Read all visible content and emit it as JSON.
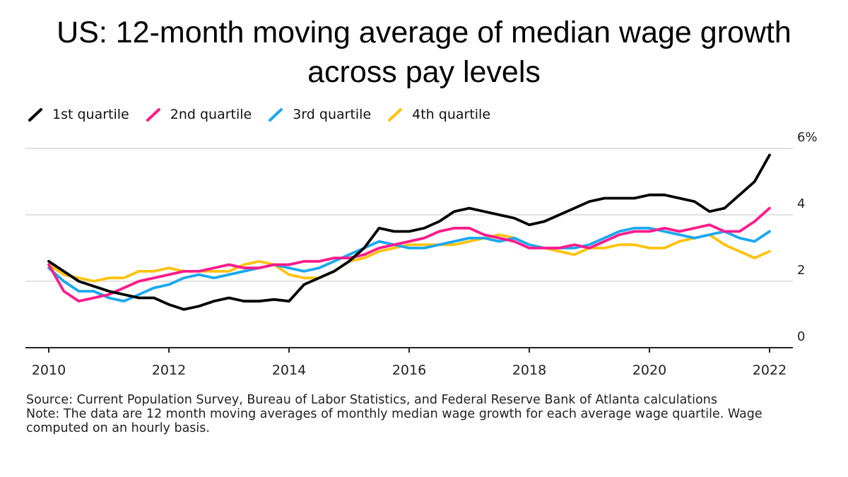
{
  "title_line1": "US: 12-month moving average of median wage growth",
  "title_line2": "across pay levels",
  "source_note": "Source: Current Population Survey, Bureau of Labor Statistics, and Federal Reserve Bank of Atlanta calculations",
  "data_note": "Note: The data are 12 month moving averages of monthly median wage growth for each average wage quartile. Wage computed on an hourly basis.",
  "chart_data": {
    "type": "line",
    "title": "US: 12-month moving average of median wage growth across pay levels",
    "xlabel": "",
    "ylabel": "",
    "xlim": [
      2010,
      2022
    ],
    "ylim": [
      0,
      6
    ],
    "x_ticks": [
      "2010",
      "2012",
      "2014",
      "2016",
      "2018",
      "2020",
      "2022"
    ],
    "y_ticks": [
      {
        "value": 0,
        "label": "0"
      },
      {
        "value": 2,
        "label": "2"
      },
      {
        "value": 4,
        "label": "4"
      },
      {
        "value": 6,
        "label": "6%"
      }
    ],
    "grid": true,
    "legend_position": "top-left",
    "series": [
      {
        "name": "1st quartile",
        "color": "#000000",
        "x": [
          2010.0,
          2010.5,
          2011.0,
          2011.25,
          2011.5,
          2011.75,
          2012.0,
          2012.25,
          2012.5,
          2012.75,
          2013.0,
          2013.25,
          2013.5,
          2013.75,
          2014.0,
          2014.25,
          2014.5,
          2014.75,
          2015.0,
          2015.25,
          2015.5,
          2015.75,
          2016.0,
          2016.25,
          2016.5,
          2016.75,
          2017.0,
          2017.25,
          2017.5,
          2017.75,
          2018.0,
          2018.25,
          2018.5,
          2018.75,
          2019.0,
          2019.25,
          2019.5,
          2019.75,
          2020.0,
          2020.25,
          2020.5,
          2020.75,
          2021.0,
          2021.25,
          2021.5,
          2021.75,
          2022.0
        ],
        "values": [
          2.6,
          2.0,
          1.7,
          1.6,
          1.5,
          1.5,
          1.3,
          1.15,
          1.25,
          1.4,
          1.5,
          1.4,
          1.4,
          1.45,
          1.4,
          1.9,
          2.1,
          2.3,
          2.6,
          3.0,
          3.6,
          3.5,
          3.5,
          3.6,
          3.8,
          4.1,
          4.2,
          4.1,
          4.0,
          3.9,
          3.7,
          3.8,
          4.0,
          4.2,
          4.4,
          4.5,
          4.5,
          4.5,
          4.6,
          4.6,
          4.5,
          4.4,
          4.1,
          4.2,
          4.6,
          5.0,
          5.8
        ]
      },
      {
        "name": "2nd quartile",
        "color": "#ff1a8c",
        "x": [
          2010.0,
          2010.25,
          2010.5,
          2010.75,
          2011.0,
          2011.25,
          2011.5,
          2011.75,
          2012.0,
          2012.25,
          2012.5,
          2012.75,
          2013.0,
          2013.25,
          2013.5,
          2013.75,
          2014.0,
          2014.25,
          2014.5,
          2014.75,
          2015.0,
          2015.25,
          2015.5,
          2015.75,
          2016.0,
          2016.25,
          2016.5,
          2016.75,
          2017.0,
          2017.25,
          2017.5,
          2017.75,
          2018.0,
          2018.25,
          2018.5,
          2018.75,
          2019.0,
          2019.25,
          2019.5,
          2019.75,
          2020.0,
          2020.25,
          2020.5,
          2020.75,
          2021.0,
          2021.25,
          2021.5,
          2021.75,
          2022.0
        ],
        "values": [
          2.5,
          1.7,
          1.4,
          1.5,
          1.6,
          1.8,
          2.0,
          2.1,
          2.2,
          2.3,
          2.3,
          2.4,
          2.5,
          2.4,
          2.4,
          2.5,
          2.5,
          2.6,
          2.6,
          2.7,
          2.7,
          2.8,
          3.0,
          3.1,
          3.2,
          3.3,
          3.5,
          3.6,
          3.6,
          3.4,
          3.3,
          3.2,
          3.0,
          3.0,
          3.0,
          3.1,
          3.0,
          3.2,
          3.4,
          3.5,
          3.5,
          3.6,
          3.5,
          3.6,
          3.7,
          3.5,
          3.5,
          3.8,
          4.2
        ]
      },
      {
        "name": "3rd quartile",
        "color": "#1aa8f0",
        "x": [
          2010.0,
          2010.25,
          2010.5,
          2010.75,
          2011.0,
          2011.25,
          2011.5,
          2011.75,
          2012.0,
          2012.25,
          2012.5,
          2012.75,
          2013.0,
          2013.25,
          2013.5,
          2013.75,
          2014.0,
          2014.25,
          2014.5,
          2014.75,
          2015.0,
          2015.25,
          2015.5,
          2015.75,
          2016.0,
          2016.25,
          2016.5,
          2016.75,
          2017.0,
          2017.25,
          2017.5,
          2017.75,
          2018.0,
          2018.25,
          2018.5,
          2018.75,
          2019.0,
          2019.25,
          2019.5,
          2019.75,
          2020.0,
          2020.25,
          2020.5,
          2020.75,
          2021.0,
          2021.25,
          2021.5,
          2021.75,
          2022.0
        ],
        "values": [
          2.4,
          2.0,
          1.7,
          1.7,
          1.5,
          1.4,
          1.6,
          1.8,
          1.9,
          2.1,
          2.2,
          2.1,
          2.2,
          2.3,
          2.4,
          2.5,
          2.4,
          2.3,
          2.4,
          2.6,
          2.8,
          3.0,
          3.2,
          3.1,
          3.0,
          3.0,
          3.1,
          3.2,
          3.3,
          3.3,
          3.2,
          3.3,
          3.1,
          3.0,
          3.0,
          3.0,
          3.1,
          3.3,
          3.5,
          3.6,
          3.6,
          3.5,
          3.4,
          3.3,
          3.4,
          3.5,
          3.3,
          3.2,
          3.5
        ]
      },
      {
        "name": "4th quartile",
        "color": "#ffc20e",
        "x": [
          2010.0,
          2010.25,
          2010.5,
          2010.75,
          2011.0,
          2011.25,
          2011.5,
          2011.75,
          2012.0,
          2012.25,
          2012.5,
          2012.75,
          2013.0,
          2013.25,
          2013.5,
          2013.75,
          2014.0,
          2014.25,
          2014.5,
          2014.75,
          2015.0,
          2015.25,
          2015.5,
          2015.75,
          2016.0,
          2016.25,
          2016.5,
          2016.75,
          2017.0,
          2017.25,
          2017.5,
          2017.75,
          2018.0,
          2018.25,
          2018.5,
          2018.75,
          2019.0,
          2019.25,
          2019.5,
          2019.75,
          2020.0,
          2020.25,
          2020.5,
          2020.75,
          2021.0,
          2021.25,
          2021.5,
          2021.75,
          2022.0
        ],
        "values": [
          2.5,
          2.2,
          2.1,
          2.0,
          2.1,
          2.1,
          2.3,
          2.3,
          2.4,
          2.3,
          2.3,
          2.3,
          2.3,
          2.5,
          2.6,
          2.5,
          2.2,
          2.1,
          2.1,
          2.3,
          2.6,
          2.7,
          2.9,
          3.0,
          3.1,
          3.1,
          3.1,
          3.1,
          3.2,
          3.3,
          3.4,
          3.3,
          3.1,
          3.0,
          2.9,
          2.8,
          3.0,
          3.0,
          3.1,
          3.1,
          3.0,
          3.0,
          3.2,
          3.3,
          3.4,
          3.1,
          2.9,
          2.7,
          2.9
        ]
      }
    ]
  }
}
